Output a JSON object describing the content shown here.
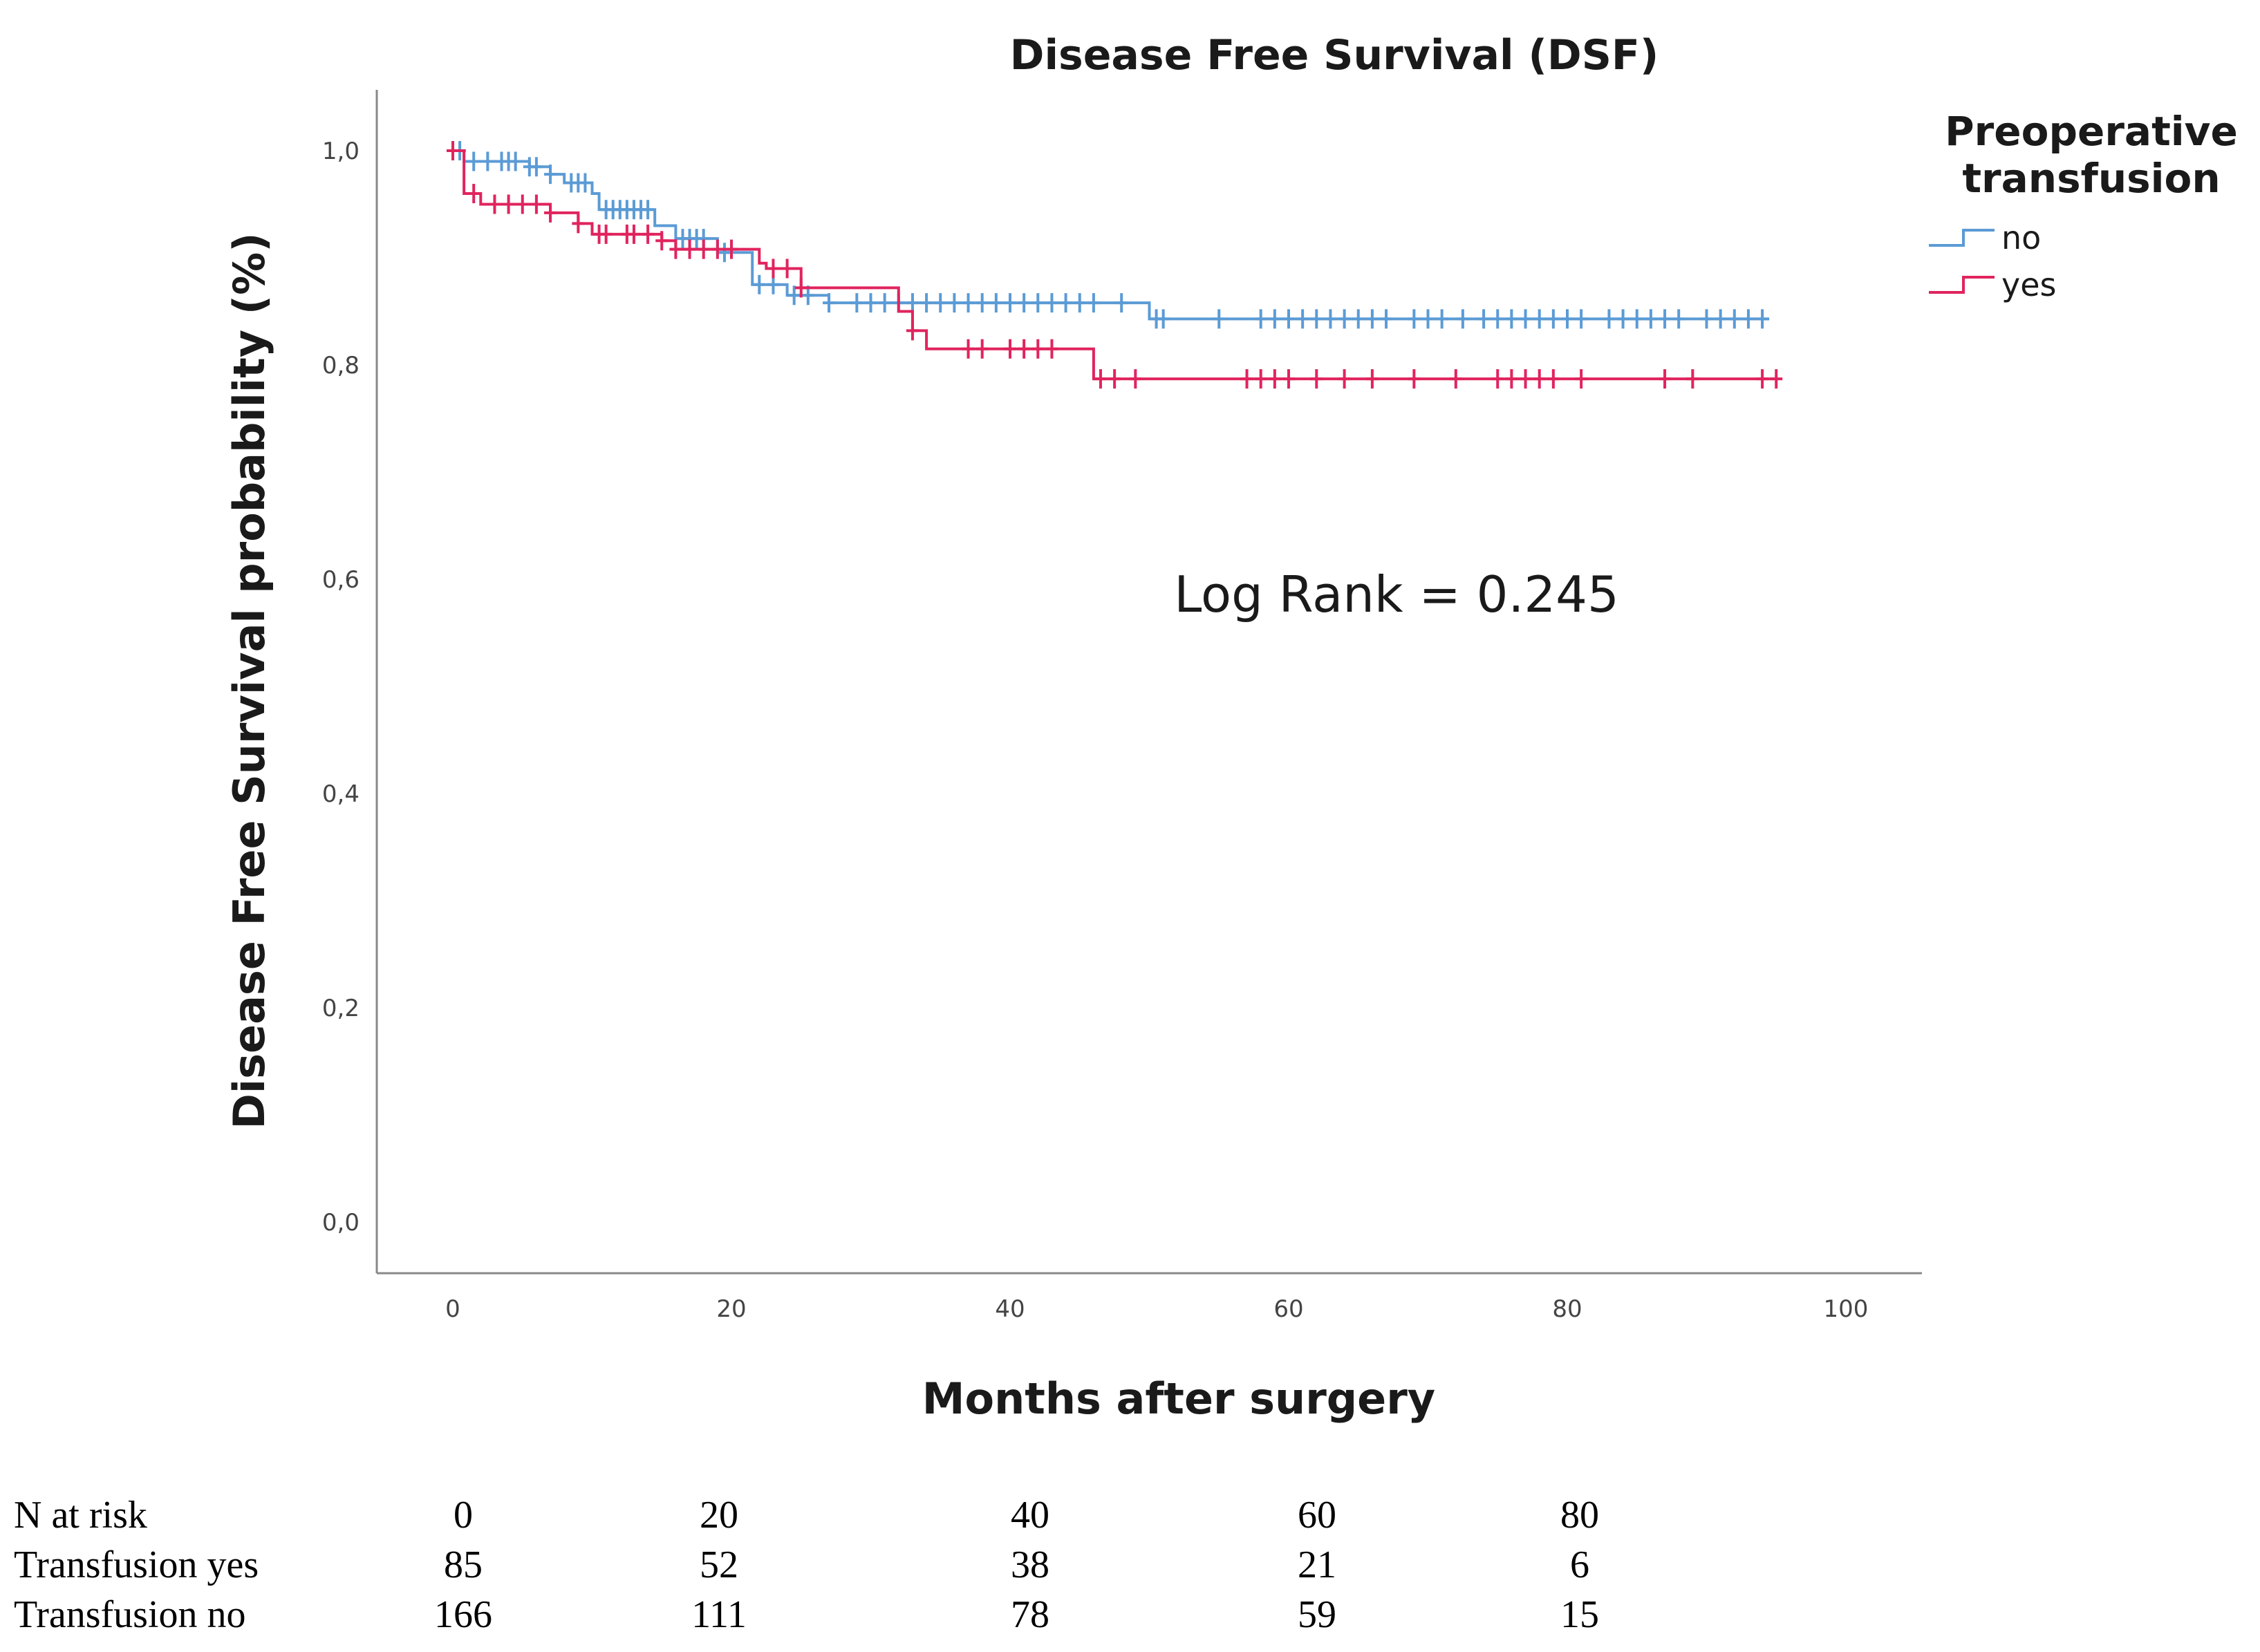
{
  "chart_data": {
    "type": "line",
    "subtype": "kaplan-meier",
    "title": "Disease Free Survival (DSF)",
    "xlabel": "Months after surgery",
    "ylabel": "Disease Free Survival probability (%)",
    "xlim": [
      -5,
      105
    ],
    "ylim": [
      -0.05,
      1.05
    ],
    "x_ticks": [
      0,
      20,
      40,
      60,
      80,
      100
    ],
    "x_tick_labels": [
      "0",
      "20",
      "40",
      "60",
      "80",
      "100"
    ],
    "y_ticks": [
      0.0,
      0.2,
      0.4,
      0.6,
      0.8,
      1.0
    ],
    "y_tick_labels": [
      "0,0",
      "0,2",
      "0,4",
      "0,6",
      "0,8",
      "1,0"
    ],
    "legend_title": "Preoperative transfusion",
    "legend_placement": "top-right",
    "annotation": "Log Rank = 0.245",
    "series": [
      {
        "name": "no",
        "color": "#5b9bd5",
        "steps": [
          [
            0,
            1.0
          ],
          [
            0.8,
            0.99
          ],
          [
            5.5,
            0.985
          ],
          [
            7,
            0.978
          ],
          [
            8,
            0.97
          ],
          [
            10,
            0.96
          ],
          [
            10.5,
            0.945
          ],
          [
            14.5,
            0.93
          ],
          [
            16,
            0.918
          ],
          [
            19,
            0.905
          ],
          [
            21.5,
            0.875
          ],
          [
            24,
            0.865
          ],
          [
            27,
            0.858
          ],
          [
            50,
            0.843
          ]
        ],
        "end": 94.5,
        "censored": [
          0.5,
          1.5,
          2.5,
          3.5,
          4,
          4.5,
          5.5,
          6,
          7,
          8.5,
          9,
          9.5,
          11,
          11.5,
          12,
          12.5,
          13,
          13.5,
          14,
          16.5,
          17,
          17.5,
          18,
          19.5,
          22,
          23,
          24.5,
          25.5,
          27,
          29,
          30,
          31,
          32,
          33,
          34,
          35,
          36,
          37,
          38,
          39,
          40,
          41,
          42,
          43,
          44,
          45,
          46,
          48,
          50.5,
          51,
          55,
          58,
          59,
          60,
          61,
          62,
          63,
          64,
          65,
          66,
          67,
          69,
          70,
          71,
          72.5,
          74,
          75,
          76,
          77,
          78,
          79,
          80,
          81,
          83,
          84,
          85,
          86,
          87,
          88,
          90,
          91,
          92,
          93,
          94
        ]
      },
      {
        "name": "yes",
        "color": "#e0245e",
        "steps": [
          [
            0,
            1.0
          ],
          [
            0.8,
            0.96
          ],
          [
            2,
            0.95
          ],
          [
            7,
            0.942
          ],
          [
            9,
            0.932
          ],
          [
            10,
            0.922
          ],
          [
            15,
            0.916
          ],
          [
            16,
            0.908
          ],
          [
            22,
            0.895
          ],
          [
            22.5,
            0.89
          ],
          [
            25,
            0.872
          ],
          [
            32,
            0.85
          ],
          [
            33,
            0.832
          ],
          [
            34,
            0.815
          ],
          [
            46,
            0.787
          ]
        ],
        "end": 95,
        "censored": [
          0,
          1.5,
          3,
          4,
          5,
          6,
          7,
          9,
          10.5,
          11,
          12.5,
          13,
          14,
          15,
          16,
          17,
          18,
          19,
          20,
          23,
          24,
          25,
          33,
          37,
          38,
          40,
          41,
          42,
          43,
          46.5,
          47.5,
          49,
          57,
          58,
          59,
          60,
          62,
          64,
          66,
          69,
          72,
          75,
          76,
          77,
          78,
          79,
          81,
          87,
          89,
          94,
          95
        ]
      }
    ]
  },
  "risk_table": {
    "header_label": "N at risk",
    "times": [
      "0",
      "20",
      "40",
      "60",
      "80"
    ],
    "rows": [
      {
        "label": "Transfusion yes",
        "values": [
          "85",
          "52",
          "38",
          "21",
          "6"
        ]
      },
      {
        "label": "Transfusion no",
        "values": [
          "166",
          "111",
          "78",
          "59",
          "15"
        ]
      }
    ]
  }
}
